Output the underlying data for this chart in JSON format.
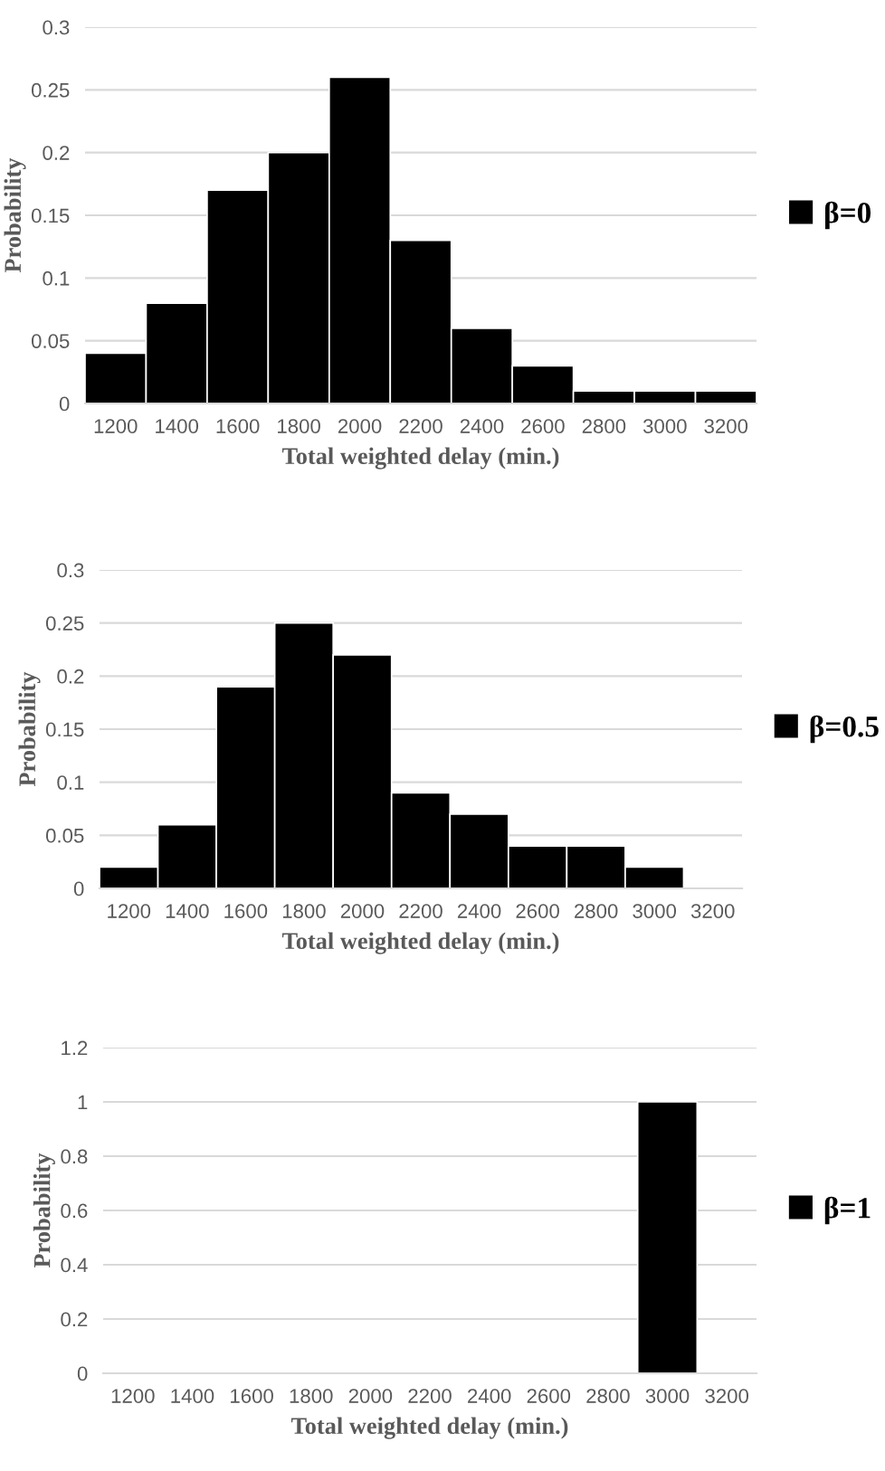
{
  "chart_data": [
    {
      "type": "histogram",
      "xlabel": "Total weighted delay (min.)",
      "ylabel": "Probability",
      "bins": [
        1100,
        1300,
        1500,
        1700,
        1900,
        2100,
        2300,
        2500,
        2700,
        2900,
        3100,
        3300
      ],
      "series": [
        {
          "name": "β=0",
          "color": "#000000",
          "values": [
            0.04,
            0.08,
            0.17,
            0.2,
            0.26,
            0.13,
            0.06,
            0.03,
            0.01,
            0.01,
            0.01
          ]
        }
      ],
      "xlim": [
        1100,
        3300
      ],
      "xticks": [
        1200,
        1400,
        1600,
        1800,
        2000,
        2200,
        2400,
        2600,
        2800,
        3000,
        3200
      ],
      "ylim": [
        0,
        0.3
      ],
      "yticks": [
        0,
        0.05,
        0.1,
        0.15,
        0.2,
        0.25,
        0.3
      ],
      "grid": "y",
      "legend": "right"
    },
    {
      "type": "histogram",
      "xlabel": "Total weighted delay (min.)",
      "ylabel": "Probability",
      "bins": [
        1100,
        1300,
        1500,
        1700,
        1900,
        2100,
        2300,
        2500,
        2700,
        2900,
        3100
      ],
      "series": [
        {
          "name": "β=0.5",
          "color": "#000000",
          "values": [
            0.02,
            0.06,
            0.19,
            0.25,
            0.22,
            0.09,
            0.07,
            0.04,
            0.04,
            0.02
          ]
        }
      ],
      "xlim": [
        1100,
        3300
      ],
      "xticks": [
        1200,
        1400,
        1600,
        1800,
        2000,
        2200,
        2400,
        2600,
        2800,
        3000,
        3200
      ],
      "ylim": [
        0,
        0.3
      ],
      "yticks": [
        0,
        0.05,
        0.1,
        0.15,
        0.2,
        0.25,
        0.3
      ],
      "grid": "y",
      "legend": "right"
    },
    {
      "type": "histogram",
      "xlabel": "Total weighted delay (min.)",
      "ylabel": "Probability",
      "bins": [
        2900,
        3100
      ],
      "series": [
        {
          "name": "β=1",
          "color": "#000000",
          "values": [
            1
          ]
        }
      ],
      "xlim": [
        1100,
        3300
      ],
      "xticks": [
        1200,
        1400,
        1600,
        1800,
        2000,
        2200,
        2400,
        2600,
        2800,
        3000,
        3200
      ],
      "ylim": [
        0,
        1.2
      ],
      "yticks": [
        0,
        0.2,
        0.4,
        0.6,
        0.8,
        1,
        1.2
      ],
      "grid": "y",
      "legend": "right"
    }
  ]
}
